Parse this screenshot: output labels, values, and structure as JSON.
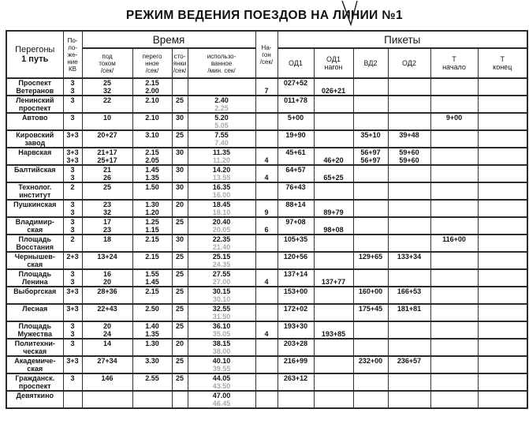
{
  "title": "РЕЖИМ ВЕДЕНИЯ ПОЕЗДОВ НА ЛИНИИ №1",
  "header": {
    "station_line1": "Перегоны",
    "station_line2": "1 путь",
    "kv": [
      "По-",
      "ло-",
      "же-",
      "ние",
      "КВ"
    ],
    "time_group": "Время",
    "col_current": [
      "под",
      "током",
      "/сек/"
    ],
    "col_peregon": [
      "перего",
      "нное",
      "/сек/"
    ],
    "col_stop": [
      "сто-",
      "янки",
      "/сек/"
    ],
    "col_used": [
      "использо-",
      "ванное",
      "/мин. сек/"
    ],
    "nagon": [
      "На-",
      "гон",
      "/сек/"
    ],
    "pickets_group": "Пикеты",
    "col_od1": [
      "ОД1"
    ],
    "col_od1n": [
      "ОД1",
      "нагон"
    ],
    "col_vd2": [
      "ВД2"
    ],
    "col_od2": [
      "ОД2"
    ],
    "col_t_start": [
      "Т",
      "начало"
    ],
    "col_t_end": [
      "Т",
      "конец"
    ]
  },
  "rows": [
    {
      "station": [
        "Проспект",
        "Ветеранов"
      ],
      "kv": [
        "3",
        "3"
      ],
      "current": [
        "25",
        "32"
      ],
      "peregon": [
        "2.15",
        "2.00"
      ],
      "stop": [
        "",
        ""
      ],
      "used": [
        "",
        ""
      ],
      "nagon": [
        "",
        "7"
      ],
      "od1": [
        "027+52",
        ""
      ],
      "od1n": [
        "",
        "026+21"
      ]
    },
    {
      "station": [
        "Ленинский",
        "проспект"
      ],
      "kv": [
        "3",
        ""
      ],
      "current": [
        "22",
        ""
      ],
      "peregon": [
        "2.10",
        ""
      ],
      "stop": [
        "25",
        ""
      ],
      "used": [
        "2.40",
        "2.25"
      ],
      "od1": [
        "011+78",
        ""
      ]
    },
    {
      "station": [
        "Автово",
        ""
      ],
      "kv": [
        "3",
        ""
      ],
      "current": [
        "10",
        ""
      ],
      "peregon": [
        "2.10",
        ""
      ],
      "stop": [
        "30",
        ""
      ],
      "used": [
        "5.20",
        "5.05"
      ],
      "od1": [
        "5+00",
        ""
      ],
      "t_start": [
        "9+00",
        ""
      ]
    },
    {
      "station": [
        "Кировский",
        "завод"
      ],
      "kv": [
        "3+3",
        ""
      ],
      "current": [
        "20+27",
        ""
      ],
      "peregon": [
        "3.10",
        ""
      ],
      "stop": [
        "25",
        ""
      ],
      "used": [
        "7.55",
        "7.40"
      ],
      "od1": [
        "19+90",
        ""
      ],
      "vd2": [
        "35+10",
        ""
      ],
      "od2": [
        "39+48",
        ""
      ]
    },
    {
      "station": [
        "Нарвская",
        ""
      ],
      "kv": [
        "3+3",
        "3+3"
      ],
      "current": [
        "21+17",
        "25+17"
      ],
      "peregon": [
        "2.15",
        "2.05"
      ],
      "stop": [
        "30",
        ""
      ],
      "used": [
        "11.35",
        "11.20"
      ],
      "nagon": [
        "",
        "4"
      ],
      "od1": [
        "45+61",
        ""
      ],
      "od1n": [
        "",
        "46+20"
      ],
      "vd2": [
        "56+97",
        "56+97"
      ],
      "od2": [
        "59+60",
        "59+60"
      ]
    },
    {
      "station": [
        "Балтийская",
        ""
      ],
      "kv": [
        "3",
        "3"
      ],
      "current": [
        "21",
        "26"
      ],
      "peregon": [
        "1.45",
        "1.35"
      ],
      "stop": [
        "30",
        ""
      ],
      "used": [
        "14.20",
        "13.55"
      ],
      "nagon": [
        "",
        "4"
      ],
      "od1": [
        "64+57",
        ""
      ],
      "od1n": [
        "",
        "65+25"
      ]
    },
    {
      "station": [
        "Технолог.",
        "институт"
      ],
      "kv": [
        "2",
        ""
      ],
      "current": [
        "25",
        ""
      ],
      "peregon": [
        "1.50",
        ""
      ],
      "stop": [
        "30",
        ""
      ],
      "used": [
        "16.35",
        "16.00"
      ],
      "od1": [
        "76+43",
        ""
      ]
    },
    {
      "station": [
        "Пушкинская",
        ""
      ],
      "kv": [
        "3",
        "3"
      ],
      "current": [
        "23",
        "32"
      ],
      "peregon": [
        "1.30",
        "1.20"
      ],
      "stop": [
        "20",
        ""
      ],
      "used": [
        "18.45",
        "18.10"
      ],
      "nagon": [
        "",
        "9"
      ],
      "od1": [
        "88+14",
        ""
      ],
      "od1n": [
        "",
        "89+79"
      ]
    },
    {
      "station": [
        "Владимир-",
        "ская"
      ],
      "kv": [
        "3",
        "3"
      ],
      "current": [
        "17",
        "23"
      ],
      "peregon": [
        "1.25",
        "1.15"
      ],
      "stop": [
        "25",
        ""
      ],
      "used": [
        "20.40",
        "20.05"
      ],
      "nagon": [
        "",
        "6"
      ],
      "od1": [
        "97+08",
        ""
      ],
      "od1n": [
        "",
        "98+08"
      ]
    },
    {
      "station": [
        "Площадь",
        "Восстания"
      ],
      "kv": [
        "2",
        ""
      ],
      "current": [
        "18",
        ""
      ],
      "peregon": [
        "2.15",
        ""
      ],
      "stop": [
        "30",
        ""
      ],
      "used": [
        "22.35",
        "21.40"
      ],
      "od1": [
        "105+35",
        ""
      ],
      "t_start": [
        "116+00",
        ""
      ]
    },
    {
      "station": [
        "Чернышев-",
        "ская"
      ],
      "kv": [
        "2+3",
        ""
      ],
      "current": [
        "13+24",
        ""
      ],
      "peregon": [
        "2.15",
        ""
      ],
      "stop": [
        "25",
        ""
      ],
      "used": [
        "25.15",
        "24.35"
      ],
      "od1": [
        "120+56",
        ""
      ],
      "vd2": [
        "129+65",
        ""
      ],
      "od2": [
        "133+34",
        ""
      ]
    },
    {
      "station": [
        "Площадь",
        "Ленина"
      ],
      "kv": [
        "3",
        "3"
      ],
      "current": [
        "16",
        "20"
      ],
      "peregon": [
        "1.55",
        "1.45"
      ],
      "stop": [
        "25",
        ""
      ],
      "used": [
        "27.55",
        "27.00"
      ],
      "nagon": [
        "",
        "4"
      ],
      "od1": [
        "137+14",
        ""
      ],
      "od1n": [
        "",
        "137+77"
      ]
    },
    {
      "station": [
        "Выборгская",
        ""
      ],
      "kv": [
        "3+3",
        ""
      ],
      "current": [
        "28+36",
        ""
      ],
      "peregon": [
        "2.15",
        ""
      ],
      "stop": [
        "25",
        ""
      ],
      "used": [
        "30.15",
        "30.10"
      ],
      "od1": [
        "153+00",
        ""
      ],
      "vd2": [
        "160+00",
        ""
      ],
      "od2": [
        "166+53",
        ""
      ]
    },
    {
      "station": [
        "Лесная",
        ""
      ],
      "kv": [
        "3+3",
        ""
      ],
      "current": [
        "22+43",
        ""
      ],
      "peregon": [
        "2.50",
        ""
      ],
      "stop": [
        "25",
        ""
      ],
      "used": [
        "32.55",
        "31.50"
      ],
      "od1": [
        "172+02",
        ""
      ],
      "vd2": [
        "175+45",
        ""
      ],
      "od2": [
        "181+81",
        ""
      ]
    },
    {
      "station": [
        "Площадь",
        "Мужества"
      ],
      "kv": [
        "3",
        "3"
      ],
      "current": [
        "20",
        "24"
      ],
      "peregon": [
        "1.40",
        "1.35"
      ],
      "stop": [
        "25",
        ""
      ],
      "used": [
        "36.10",
        "35.05"
      ],
      "nagon": [
        "",
        "4"
      ],
      "od1": [
        "193+30",
        ""
      ],
      "od1n": [
        "",
        "193+85"
      ]
    },
    {
      "station": [
        "Политехни-",
        "ческая"
      ],
      "kv": [
        "3",
        ""
      ],
      "current": [
        "14",
        ""
      ],
      "peregon": [
        "1.30",
        ""
      ],
      "stop": [
        "20",
        ""
      ],
      "used": [
        "38.15",
        "38.00"
      ],
      "od1": [
        "203+28",
        ""
      ]
    },
    {
      "station": [
        "Академиче-",
        "ская"
      ],
      "kv": [
        "3+3",
        ""
      ],
      "current": [
        "27+34",
        ""
      ],
      "peregon": [
        "3.30",
        ""
      ],
      "stop": [
        "25",
        ""
      ],
      "used": [
        "40.10",
        "39.55"
      ],
      "od1": [
        "216+99",
        ""
      ],
      "vd2": [
        "232+00",
        ""
      ],
      "od2": [
        "236+57",
        ""
      ]
    },
    {
      "station": [
        "Гражданск.",
        "проспект"
      ],
      "kv": [
        "3",
        ""
      ],
      "current": [
        "146",
        ""
      ],
      "peregon": [
        "2.55",
        ""
      ],
      "stop": [
        "25",
        ""
      ],
      "used": [
        "44.05",
        "43.50"
      ],
      "od1": [
        "263+12",
        ""
      ]
    },
    {
      "station": [
        "Девяткино",
        ""
      ],
      "used": [
        "47.00",
        "46.45"
      ]
    }
  ]
}
